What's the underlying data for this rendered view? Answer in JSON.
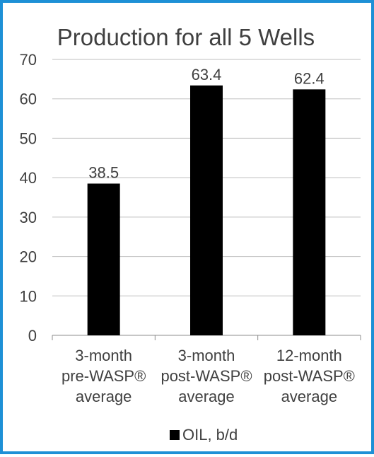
{
  "chart_data": {
    "type": "bar",
    "title": "Production for all 5 Wells",
    "categories": [
      [
        "3-month",
        "pre-WASP®",
        "average"
      ],
      [
        "3-month",
        "post-WASP®",
        "average"
      ],
      [
        "12-month",
        "post-WASP®",
        "average"
      ]
    ],
    "series": [
      {
        "name": "OIL, b/d",
        "values": [
          38.5,
          63.4,
          62.4
        ],
        "color": "#000000"
      }
    ],
    "data_labels": [
      "38.5",
      "63.4",
      "62.4"
    ],
    "y_ticks": [
      "0",
      "10",
      "20",
      "30",
      "40",
      "50",
      "60",
      "70"
    ],
    "ylim": [
      0,
      70
    ],
    "grid": true,
    "legend": {
      "position": "bottom"
    },
    "colors": {
      "frame": "#1e90d6",
      "grid": "#bfbfbf",
      "text": "#404040",
      "bar": "#000000"
    }
  }
}
